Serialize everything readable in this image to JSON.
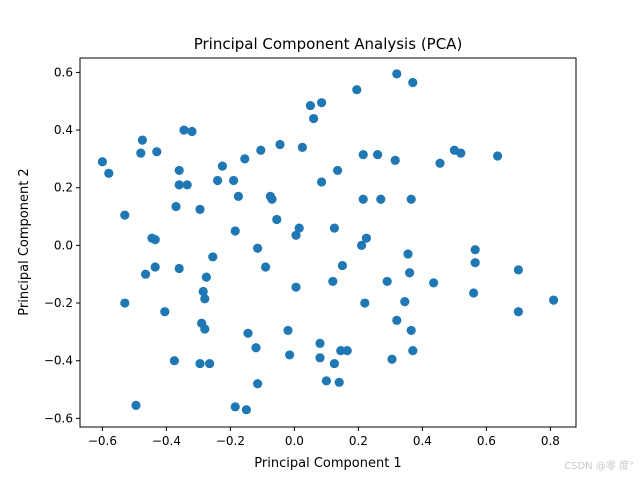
{
  "chart_data": {
    "type": "scatter",
    "title": "Principal Component Analysis (PCA)",
    "xlabel": "Principal Component 1",
    "ylabel": "Principal Component 2",
    "xlim": [
      -0.67,
      0.88
    ],
    "ylim": [
      -0.63,
      0.65
    ],
    "xticks": [
      -0.6,
      -0.4,
      -0.2,
      0.0,
      0.2,
      0.4,
      0.6,
      0.8
    ],
    "yticks": [
      -0.6,
      -0.4,
      -0.2,
      0.0,
      0.2,
      0.4,
      0.6
    ],
    "xtick_labels": [
      "−0.6",
      "−0.4",
      "−0.2",
      "0.0",
      "0.2",
      "0.4",
      "0.6",
      "0.8"
    ],
    "ytick_labels": [
      "−0.6",
      "−0.4",
      "−0.2",
      "0.0",
      "0.2",
      "0.4",
      "0.6"
    ],
    "marker_color": "#1f77b4",
    "grid": false,
    "points": [
      [
        0.32,
        0.595
      ],
      [
        0.37,
        0.565
      ],
      [
        0.195,
        0.54
      ],
      [
        0.085,
        0.495
      ],
      [
        0.05,
        0.485
      ],
      [
        0.06,
        0.44
      ],
      [
        -0.345,
        0.4
      ],
      [
        -0.32,
        0.395
      ],
      [
        -0.475,
        0.365
      ],
      [
        -0.105,
        0.33
      ],
      [
        -0.045,
        0.35
      ],
      [
        0.025,
        0.34
      ],
      [
        -0.48,
        0.32
      ],
      [
        -0.43,
        0.325
      ],
      [
        0.215,
        0.315
      ],
      [
        0.26,
        0.315
      ],
      [
        0.315,
        0.295
      ],
      [
        0.5,
        0.33
      ],
      [
        0.52,
        0.32
      ],
      [
        0.635,
        0.31
      ],
      [
        0.455,
        0.285
      ],
      [
        -0.6,
        0.29
      ],
      [
        -0.58,
        0.25
      ],
      [
        -0.36,
        0.26
      ],
      [
        -0.225,
        0.275
      ],
      [
        -0.155,
        0.3
      ],
      [
        -0.24,
        0.225
      ],
      [
        -0.19,
        0.225
      ],
      [
        0.135,
        0.26
      ],
      [
        -0.36,
        0.21
      ],
      [
        -0.335,
        0.21
      ],
      [
        0.085,
        0.22
      ],
      [
        -0.175,
        0.17
      ],
      [
        -0.075,
        0.17
      ],
      [
        -0.07,
        0.16
      ],
      [
        0.215,
        0.16
      ],
      [
        0.27,
        0.16
      ],
      [
        0.365,
        0.16
      ],
      [
        -0.37,
        0.135
      ],
      [
        -0.295,
        0.125
      ],
      [
        -0.53,
        0.105
      ],
      [
        -0.055,
        0.09
      ],
      [
        0.125,
        0.06
      ],
      [
        0.015,
        0.06
      ],
      [
        -0.185,
        0.05
      ],
      [
        0.005,
        0.035
      ],
      [
        -0.445,
        0.025
      ],
      [
        -0.435,
        0.02
      ],
      [
        0.225,
        0.025
      ],
      [
        0.21,
        0.0
      ],
      [
        -0.115,
        -0.01
      ],
      [
        0.565,
        -0.015
      ],
      [
        0.355,
        -0.03
      ],
      [
        -0.255,
        -0.04
      ],
      [
        0.15,
        -0.07
      ],
      [
        0.565,
        -0.06
      ],
      [
        -0.09,
        -0.075
      ],
      [
        -0.36,
        -0.08
      ],
      [
        -0.435,
        -0.075
      ],
      [
        0.36,
        -0.095
      ],
      [
        0.7,
        -0.085
      ],
      [
        -0.465,
        -0.1
      ],
      [
        -0.275,
        -0.11
      ],
      [
        0.12,
        -0.125
      ],
      [
        0.29,
        -0.125
      ],
      [
        0.435,
        -0.13
      ],
      [
        0.005,
        -0.145
      ],
      [
        -0.285,
        -0.16
      ],
      [
        0.56,
        -0.165
      ],
      [
        -0.28,
        -0.185
      ],
      [
        0.81,
        -0.19
      ],
      [
        -0.53,
        -0.2
      ],
      [
        0.22,
        -0.2
      ],
      [
        0.345,
        -0.195
      ],
      [
        -0.405,
        -0.23
      ],
      [
        0.7,
        -0.23
      ],
      [
        0.32,
        -0.26
      ],
      [
        -0.29,
        -0.27
      ],
      [
        -0.28,
        -0.29
      ],
      [
        -0.02,
        -0.295
      ],
      [
        0.365,
        -0.295
      ],
      [
        -0.145,
        -0.305
      ],
      [
        -0.12,
        -0.355
      ],
      [
        0.08,
        -0.34
      ],
      [
        0.145,
        -0.365
      ],
      [
        0.165,
        -0.365
      ],
      [
        0.37,
        -0.365
      ],
      [
        -0.015,
        -0.38
      ],
      [
        0.08,
        -0.39
      ],
      [
        0.305,
        -0.395
      ],
      [
        -0.375,
        -0.4
      ],
      [
        -0.295,
        -0.41
      ],
      [
        -0.265,
        -0.41
      ],
      [
        0.125,
        -0.41
      ],
      [
        0.1,
        -0.47
      ],
      [
        0.14,
        -0.475
      ],
      [
        -0.115,
        -0.48
      ],
      [
        -0.495,
        -0.555
      ],
      [
        -0.185,
        -0.56
      ],
      [
        -0.15,
        -0.57
      ]
    ]
  },
  "watermark": "CSDN @零  度°"
}
